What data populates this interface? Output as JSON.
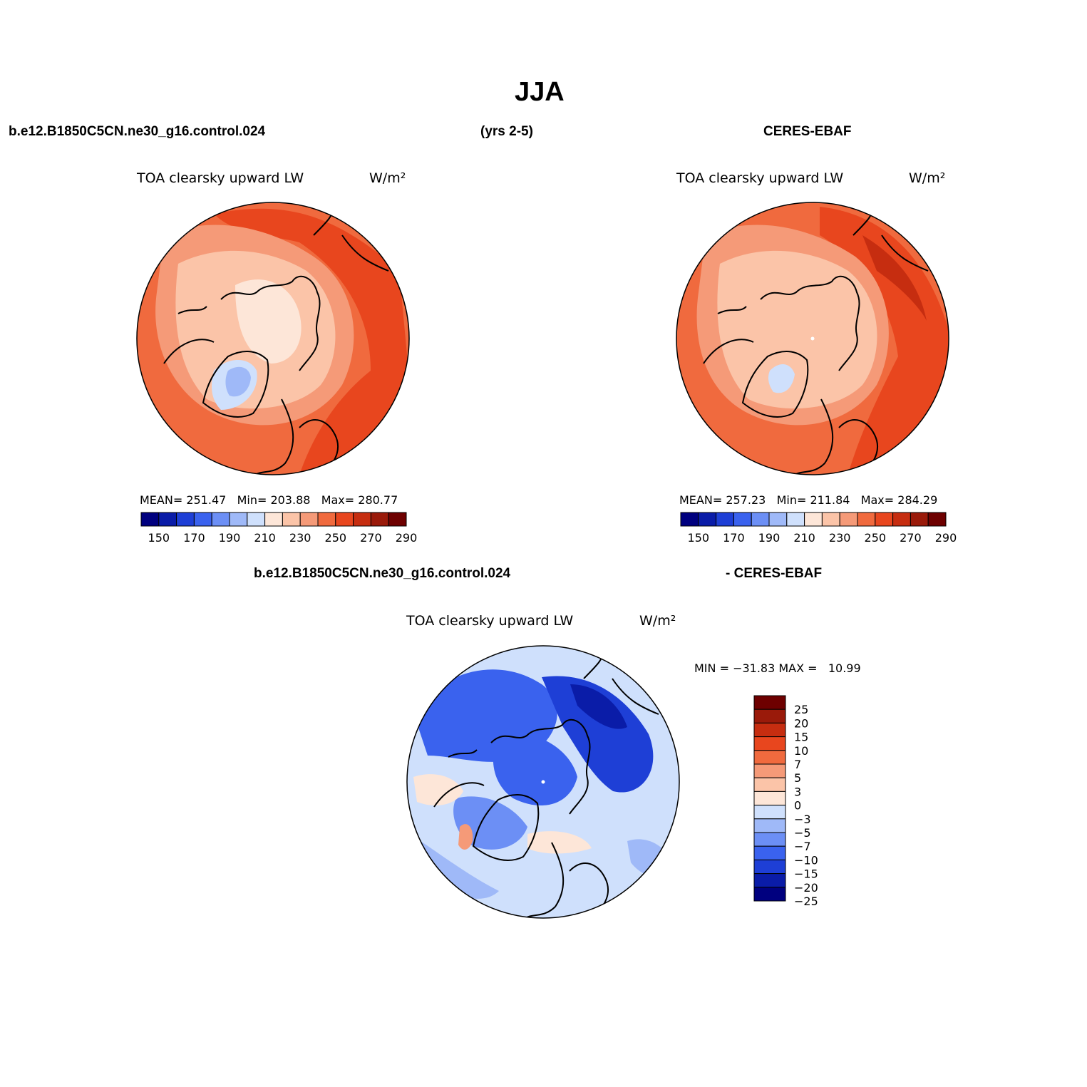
{
  "page_title": "JJA",
  "header": {
    "left": "b.e12.B1850C5CN.ne30_g16.control.024",
    "center": "(yrs 2-5)",
    "right": "CERES-EBAF"
  },
  "colors": {
    "abs_scale": [
      "#00007f",
      "#0a1ca8",
      "#1e3fd6",
      "#3a62ee",
      "#6c8ff5",
      "#9fb9f8",
      "#cfe0fc",
      "#fde6d8",
      "#fbc4a8",
      "#f59a78",
      "#f06a3e",
      "#e8461e",
      "#c62d10",
      "#9a1a0a",
      "#6e0000"
    ],
    "diff_scale": [
      "#00007f",
      "#0a1ca8",
      "#1e3fd6",
      "#3a62ee",
      "#6c8ff5",
      "#9fb9f8",
      "#cfe0fc",
      "#fde6d8",
      "#fbc4a8",
      "#f59a78",
      "#f06a3e",
      "#e8461e",
      "#c62d10",
      "#9a1a0a",
      "#6e0000"
    ]
  },
  "panels": {
    "model": {
      "title": "TOA clearsky upward LW",
      "units": "W/m²",
      "stats": "MEAN= 251.47   Min= 203.88   Max= 280.77",
      "ticks": [
        "150",
        "170",
        "190",
        "210",
        "230",
        "250",
        "270",
        "290"
      ]
    },
    "obs": {
      "title": "TOA clearsky upward LW",
      "units": "W/m²",
      "stats": "MEAN= 257.23   Min= 211.84   Max= 284.29",
      "ticks": [
        "150",
        "170",
        "190",
        "210",
        "230",
        "250",
        "270",
        "290"
      ]
    },
    "diff": {
      "label_left": "b.e12.B1850C5CN.ne30_g16.control.024",
      "label_right": "- CERES-EBAF",
      "title": "TOA clearsky upward LW",
      "units": "W/m²",
      "stats": "MIN = −31.83 MAX =   10.99",
      "ticks": [
        "25",
        "20",
        "15",
        "10",
        "7",
        "5",
        "3",
        "0",
        "−3",
        "−5",
        "−7",
        "−10",
        "−15",
        "−20",
        "−25"
      ]
    }
  }
}
